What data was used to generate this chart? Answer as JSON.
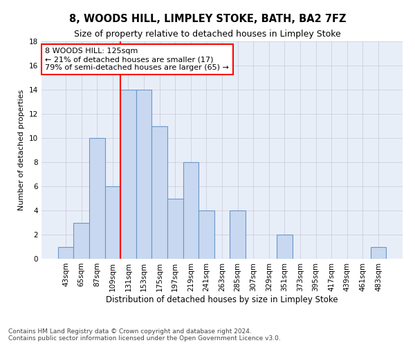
{
  "title": "8, WOODS HILL, LIMPLEY STOKE, BATH, BA2 7FZ",
  "subtitle": "Size of property relative to detached houses in Limpley Stoke",
  "xlabel": "Distribution of detached houses by size in Limpley Stoke",
  "ylabel": "Number of detached properties",
  "categories": [
    "43sqm",
    "65sqm",
    "87sqm",
    "109sqm",
    "131sqm",
    "153sqm",
    "175sqm",
    "197sqm",
    "219sqm",
    "241sqm",
    "263sqm",
    "285sqm",
    "307sqm",
    "329sqm",
    "351sqm",
    "373sqm",
    "395sqm",
    "417sqm",
    "439sqm",
    "461sqm",
    "483sqm"
  ],
  "values": [
    1,
    3,
    10,
    6,
    14,
    14,
    11,
    5,
    8,
    4,
    0,
    4,
    0,
    0,
    2,
    0,
    0,
    0,
    0,
    0,
    1
  ],
  "bar_color": "#c8d8f0",
  "bar_edge_color": "#6a96c8",
  "annotation_text": "8 WOODS HILL: 125sqm\n← 21% of detached houses are smaller (17)\n79% of semi-detached houses are larger (65) →",
  "annotation_box_color": "white",
  "annotation_box_edge_color": "red",
  "vline_color": "red",
  "vline_x": 3.5,
  "ylim": [
    0,
    18
  ],
  "yticks": [
    0,
    2,
    4,
    6,
    8,
    10,
    12,
    14,
    16,
    18
  ],
  "grid_color": "#c8c8d8",
  "background_color": "#e8eef8",
  "footer": "Contains HM Land Registry data © Crown copyright and database right 2024.\nContains public sector information licensed under the Open Government Licence v3.0.",
  "title_fontsize": 10.5,
  "subtitle_fontsize": 9,
  "xlabel_fontsize": 8.5,
  "ylabel_fontsize": 8,
  "tick_fontsize": 7.5,
  "annotation_fontsize": 8,
  "footer_fontsize": 6.5
}
